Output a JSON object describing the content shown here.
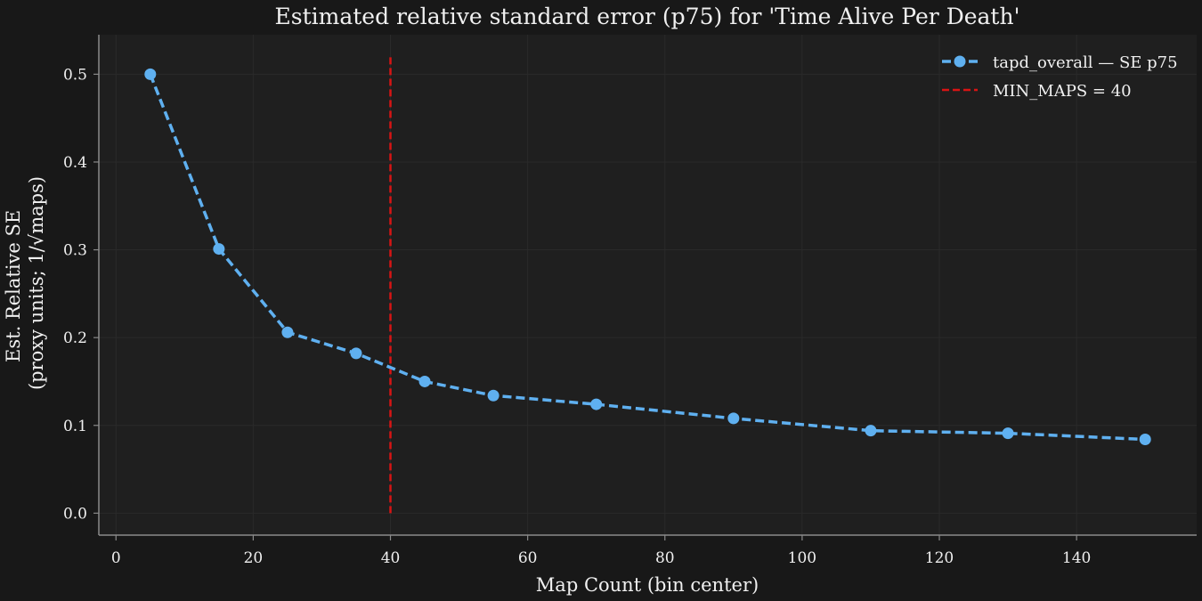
{
  "chart_data": {
    "type": "line",
    "title": "Estimated relative standard error (p75) for 'Time Alive Per Death'",
    "xlabel": "Map Count (bin center)",
    "ylabel_line1": "Est. Relative SE",
    "ylabel_line2": "(proxy units; 1/√maps)",
    "xlim": [
      -2.5,
      157.5
    ],
    "ylim": [
      -0.025,
      0.545
    ],
    "xticks": [
      0,
      20,
      40,
      60,
      80,
      100,
      120,
      140
    ],
    "yticks": [
      0.0,
      0.1,
      0.2,
      0.3,
      0.4,
      0.5
    ],
    "xtick_labels": [
      "0",
      "20",
      "40",
      "60",
      "80",
      "100",
      "120",
      "140"
    ],
    "ytick_labels": [
      "0.0",
      "0.1",
      "0.2",
      "0.3",
      "0.4",
      "0.5"
    ],
    "grid": true,
    "legend_position": "top-right",
    "series": [
      {
        "name": "tapd_overall — SE p75",
        "color": "#5fb0f0",
        "style": "dashed",
        "marker": "circle",
        "x": [
          5,
          15,
          25,
          35,
          45,
          55,
          70,
          90,
          110,
          130,
          150
        ],
        "values": [
          0.5,
          0.301,
          0.206,
          0.182,
          0.15,
          0.134,
          0.124,
          0.108,
          0.094,
          0.091,
          0.084
        ]
      }
    ],
    "reference_lines": [
      {
        "name": "MIN_MAPS = 40",
        "axis": "x",
        "value": 40,
        "y_range": [
          0.0,
          0.52
        ],
        "color": "#d81414",
        "style": "dashed"
      }
    ]
  },
  "colors": {
    "background": "#181818",
    "plot_background": "#1f1f1f",
    "grid": "#2a2a2a",
    "spine": "#8a8a8a",
    "text": "#f0f0f0"
  }
}
